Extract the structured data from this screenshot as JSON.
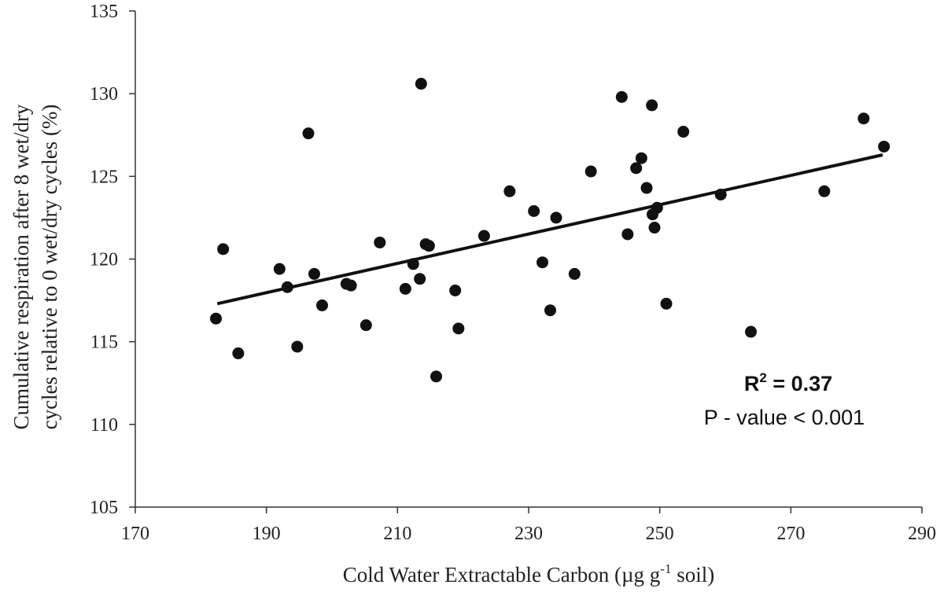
{
  "chart_data": {
    "type": "scatter",
    "title": "",
    "xlabel": "Cold Water Extractable Carbon  (µg g⁻¹ soil)",
    "xlabel_parts": {
      "prefix": "Cold Water Extractable Carbon  (µg g",
      "sup": "-1",
      "suffix": " soil)"
    },
    "ylabel_lines": [
      "Cumulative respiration after 8 wet/dry",
      "cycles relative to 0 wet/dry cycles (%)"
    ],
    "xlim": [
      170,
      290
    ],
    "ylim": [
      105,
      135
    ],
    "xticks": [
      170,
      190,
      210,
      230,
      250,
      270,
      290
    ],
    "yticks": [
      105,
      110,
      115,
      120,
      125,
      130,
      135
    ],
    "grid": false,
    "points": [
      {
        "x": 182.3,
        "y": 116.4
      },
      {
        "x": 183.4,
        "y": 120.6
      },
      {
        "x": 185.7,
        "y": 114.3
      },
      {
        "x": 192.0,
        "y": 119.4
      },
      {
        "x": 193.2,
        "y": 118.3
      },
      {
        "x": 194.7,
        "y": 114.7
      },
      {
        "x": 196.4,
        "y": 127.6
      },
      {
        "x": 197.3,
        "y": 119.1
      },
      {
        "x": 198.5,
        "y": 117.2
      },
      {
        "x": 202.2,
        "y": 118.5
      },
      {
        "x": 202.9,
        "y": 118.4
      },
      {
        "x": 205.2,
        "y": 116.0
      },
      {
        "x": 207.3,
        "y": 121.0
      },
      {
        "x": 211.2,
        "y": 118.2
      },
      {
        "x": 212.4,
        "y": 119.7
      },
      {
        "x": 213.4,
        "y": 118.8
      },
      {
        "x": 213.6,
        "y": 130.6
      },
      {
        "x": 214.3,
        "y": 120.9
      },
      {
        "x": 214.8,
        "y": 120.8
      },
      {
        "x": 215.9,
        "y": 112.9
      },
      {
        "x": 218.8,
        "y": 118.1
      },
      {
        "x": 219.3,
        "y": 115.8
      },
      {
        "x": 223.2,
        "y": 121.4
      },
      {
        "x": 227.1,
        "y": 124.1
      },
      {
        "x": 230.8,
        "y": 122.9
      },
      {
        "x": 232.1,
        "y": 119.8
      },
      {
        "x": 233.3,
        "y": 116.9
      },
      {
        "x": 234.2,
        "y": 122.5
      },
      {
        "x": 237.0,
        "y": 119.1
      },
      {
        "x": 239.5,
        "y": 125.3
      },
      {
        "x": 244.2,
        "y": 129.8
      },
      {
        "x": 245.1,
        "y": 121.5
      },
      {
        "x": 246.4,
        "y": 125.5
      },
      {
        "x": 247.2,
        "y": 126.1
      },
      {
        "x": 248.0,
        "y": 124.3
      },
      {
        "x": 248.8,
        "y": 129.3
      },
      {
        "x": 248.9,
        "y": 122.7
      },
      {
        "x": 249.2,
        "y": 121.9
      },
      {
        "x": 249.6,
        "y": 123.1
      },
      {
        "x": 251.0,
        "y": 117.3
      },
      {
        "x": 253.6,
        "y": 127.7
      },
      {
        "x": 259.3,
        "y": 123.9
      },
      {
        "x": 263.9,
        "y": 115.6
      },
      {
        "x": 275.1,
        "y": 124.1
      },
      {
        "x": 281.1,
        "y": 128.5
      },
      {
        "x": 284.2,
        "y": 126.8
      }
    ],
    "trendline": {
      "x": [
        182.5,
        284.0
      ],
      "y": [
        117.3,
        126.3
      ]
    },
    "annotations": {
      "r2_prefix": "R",
      "r2_sup": "2",
      "r2_value": " = 0.37",
      "pvalue": "P - value < 0.001"
    }
  },
  "colors": {
    "axis": "#333333",
    "marker": "#111111",
    "line": "#111111"
  }
}
